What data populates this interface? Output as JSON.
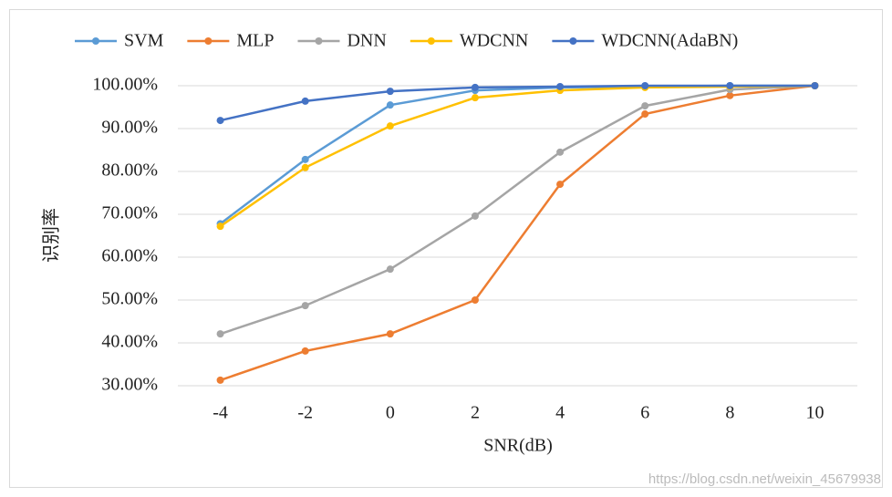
{
  "chart_data": {
    "type": "line",
    "xlabel": "SNR(dB)",
    "ylabel": "识别率",
    "categories": [
      "-4",
      "-2",
      "0",
      "2",
      "4",
      "6",
      "8",
      "10"
    ],
    "series": [
      {
        "name": "SVM",
        "color": "#5b9bd5",
        "values": [
          67.8,
          82.8,
          95.5,
          98.9,
          99.6,
          99.8,
          100,
          100
        ]
      },
      {
        "name": "MLP",
        "color": "#ed7d31",
        "values": [
          31.3,
          38.1,
          42.1,
          50.0,
          77.0,
          93.4,
          97.7,
          100
        ]
      },
      {
        "name": "DNN",
        "color": "#a5a5a5",
        "values": [
          42.1,
          48.7,
          57.2,
          69.6,
          84.5,
          95.3,
          99.1,
          100
        ]
      },
      {
        "name": "WDCNN",
        "color": "#ffc000",
        "values": [
          67.2,
          80.9,
          90.6,
          97.2,
          98.9,
          99.6,
          99.8,
          100
        ]
      },
      {
        "name": "WDCNN(AdaBN)",
        "color": "#4472c4",
        "values": [
          91.9,
          96.4,
          98.7,
          99.6,
          99.8,
          100,
          100,
          100
        ]
      }
    ],
    "ylim": [
      30,
      100
    ],
    "yticks": [
      {
        "value": 30,
        "label": "30.00%"
      },
      {
        "value": 40,
        "label": "40.00%"
      },
      {
        "value": 50,
        "label": "50.00%"
      },
      {
        "value": 60,
        "label": "60.00%"
      },
      {
        "value": 70,
        "label": "70.00%"
      },
      {
        "value": 80,
        "label": "80.00%"
      },
      {
        "value": 90,
        "label": "90.00%"
      },
      {
        "value": 100,
        "label": "100.00%"
      }
    ],
    "grid": true,
    "legend": "top",
    "watermark": "https://blog.csdn.net/weixin_45679938"
  }
}
